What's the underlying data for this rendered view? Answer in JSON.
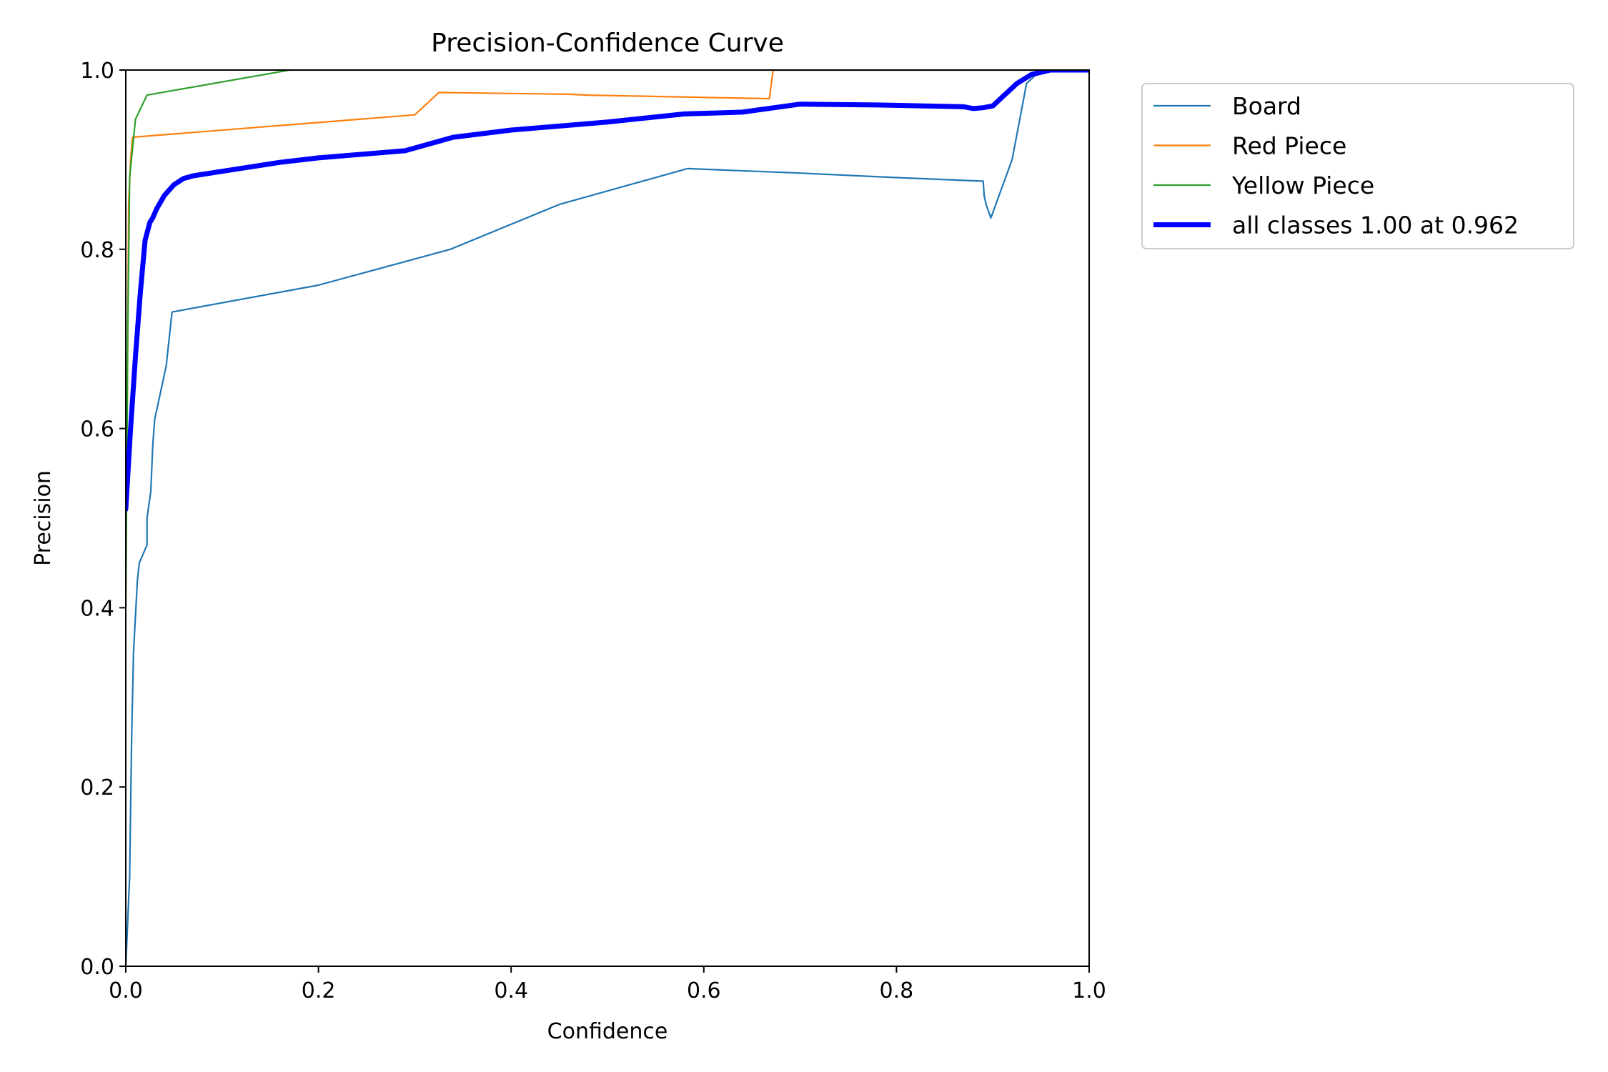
{
  "chart_data": {
    "type": "line",
    "title": "Precision-Confidence Curve",
    "xlabel": "Confidence",
    "ylabel": "Precision",
    "xlim": [
      0,
      1
    ],
    "ylim": [
      0,
      1
    ],
    "xticks": [
      "0.0",
      "0.2",
      "0.4",
      "0.6",
      "0.8",
      "1.0"
    ],
    "yticks": [
      "0.0",
      "0.2",
      "0.4",
      "0.6",
      "0.8",
      "1.0"
    ],
    "grid": false,
    "legend_position": "outside-top-right",
    "series": [
      {
        "name": "Board",
        "color": "#1f77b4",
        "width": "thin",
        "x": [
          0.0,
          0.002,
          0.004,
          0.006,
          0.008,
          0.01,
          0.012,
          0.014,
          0.018,
          0.022,
          0.022,
          0.026,
          0.028,
          0.03,
          0.034,
          0.042,
          0.048,
          0.2,
          0.337,
          0.45,
          0.583,
          0.7,
          0.8,
          0.89,
          0.891,
          0.893,
          0.898,
          0.92,
          0.935,
          0.95,
          0.97,
          1.0
        ],
        "y": [
          0.0,
          0.05,
          0.1,
          0.25,
          0.35,
          0.39,
          0.43,
          0.45,
          0.46,
          0.47,
          0.5,
          0.53,
          0.58,
          0.61,
          0.63,
          0.67,
          0.73,
          0.76,
          0.8,
          0.85,
          0.89,
          0.885,
          0.88,
          0.876,
          0.86,
          0.85,
          0.835,
          0.9,
          0.985,
          1.0,
          1.0,
          1.0
        ]
      },
      {
        "name": "Red Piece",
        "color": "#ff7f0e",
        "width": "thin",
        "x": [
          0.0,
          0.003,
          0.005,
          0.007,
          0.3,
          0.325,
          0.46,
          0.48,
          0.668,
          0.672,
          0.8,
          1.0
        ],
        "y": [
          0.4,
          0.85,
          0.9,
          0.925,
          0.95,
          0.975,
          0.973,
          0.972,
          0.968,
          1.0,
          1.0,
          1.0
        ],
        "trim_top": true
      },
      {
        "name": "Yellow Piece",
        "color": "#2ca02c",
        "width": "thin",
        "x": [
          0.0,
          0.002,
          0.004,
          0.01,
          0.022,
          0.17,
          0.4,
          1.0
        ],
        "y": [
          0.4,
          0.7,
          0.88,
          0.945,
          0.972,
          1.0,
          1.0,
          1.0
        ],
        "trim_top": true
      },
      {
        "name": "all classes 1.00 at 0.962",
        "color": "#0000ff",
        "width": "thick",
        "x": [
          0.0,
          0.005,
          0.01,
          0.015,
          0.02,
          0.025,
          0.028,
          0.032,
          0.04,
          0.05,
          0.06,
          0.07,
          0.1,
          0.16,
          0.2,
          0.29,
          0.34,
          0.4,
          0.5,
          0.58,
          0.64,
          0.7,
          0.78,
          0.87,
          0.88,
          0.89,
          0.9,
          0.91,
          0.925,
          0.94,
          0.96,
          0.98,
          1.0
        ],
        "y": [
          0.51,
          0.6,
          0.68,
          0.75,
          0.81,
          0.83,
          0.835,
          0.845,
          0.86,
          0.872,
          0.879,
          0.882,
          0.887,
          0.897,
          0.902,
          0.91,
          0.925,
          0.933,
          0.942,
          0.951,
          0.953,
          0.962,
          0.961,
          0.959,
          0.957,
          0.958,
          0.96,
          0.97,
          0.985,
          0.995,
          1.0,
          1.0,
          1.0
        ]
      }
    ]
  }
}
